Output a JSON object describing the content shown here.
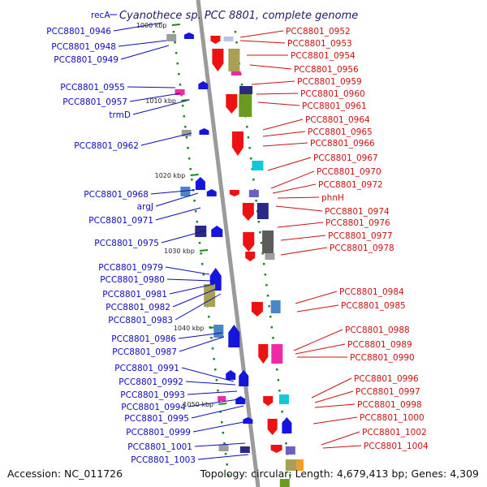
{
  "title": "Cyanothece sp. PCC 8801, complete genome",
  "top_label": "recA",
  "accession": "Accession: NC_011726",
  "stats": "Topology: circular; Length: 4,679,413 bp; Genes: 4,309",
  "scale_labels": [
    "1000 kbp",
    "1010 kbp",
    "1020 kbp",
    "1030 kbp",
    "1040 kbp",
    "1050 kbp"
  ],
  "left_labels": [
    "PCC8801_0946",
    "PCC8801_0948",
    "PCC8801_0949",
    "PCC8801_0955",
    "PCC8801_0957",
    "trmD",
    "PCC8801_0962",
    "PCC8801_0968",
    "argJ",
    "PCC8801_0971",
    "PCC8801_0975",
    "PCC8801_0979",
    "PCC8801_0980",
    "PCC8801_0981",
    "PCC8801_0982",
    "PCC8801_0983",
    "PCC8801_0986",
    "PCC8801_0987",
    "PCC8801_0991",
    "PCC8801_0992",
    "PCC8801_0993",
    "PCC8801_0994",
    "PCC8801_0995",
    "PCC8801_0999",
    "PCC8801_1001",
    "PCC8801_1003"
  ],
  "right_labels": [
    "PCC8801_0952",
    "PCC8801_0953",
    "PCC8801_0954",
    "PCC8801_0956",
    "PCC8801_0959",
    "PCC8801_0960",
    "PCC8801_0961",
    "PCC8801_0964",
    "PCC8801_0965",
    "PCC8801_0966",
    "PCC8801_0967",
    "PCC8801_0970",
    "PCC8801_0972",
    "phnH",
    "PCC8801_0974",
    "PCC8801_0976",
    "PCC8801_0977",
    "PCC8801_0978",
    "PCC8801_0984",
    "PCC8801_0985",
    "PCC8801_0988",
    "PCC8801_0989",
    "PCC8801_0990",
    "PCC8801_0996",
    "PCC8801_0997",
    "PCC8801_0998",
    "PCC8801_1000",
    "PCC8801_1002",
    "PCC8801_1004"
  ],
  "colors": {
    "left_text": "#0b0bbf",
    "right_text": "#cc1111",
    "backbone": "#9a9a9a",
    "forward_gene": "#1515dd",
    "reverse_gene": "#ee1111",
    "tick": "#1a8a1a"
  }
}
